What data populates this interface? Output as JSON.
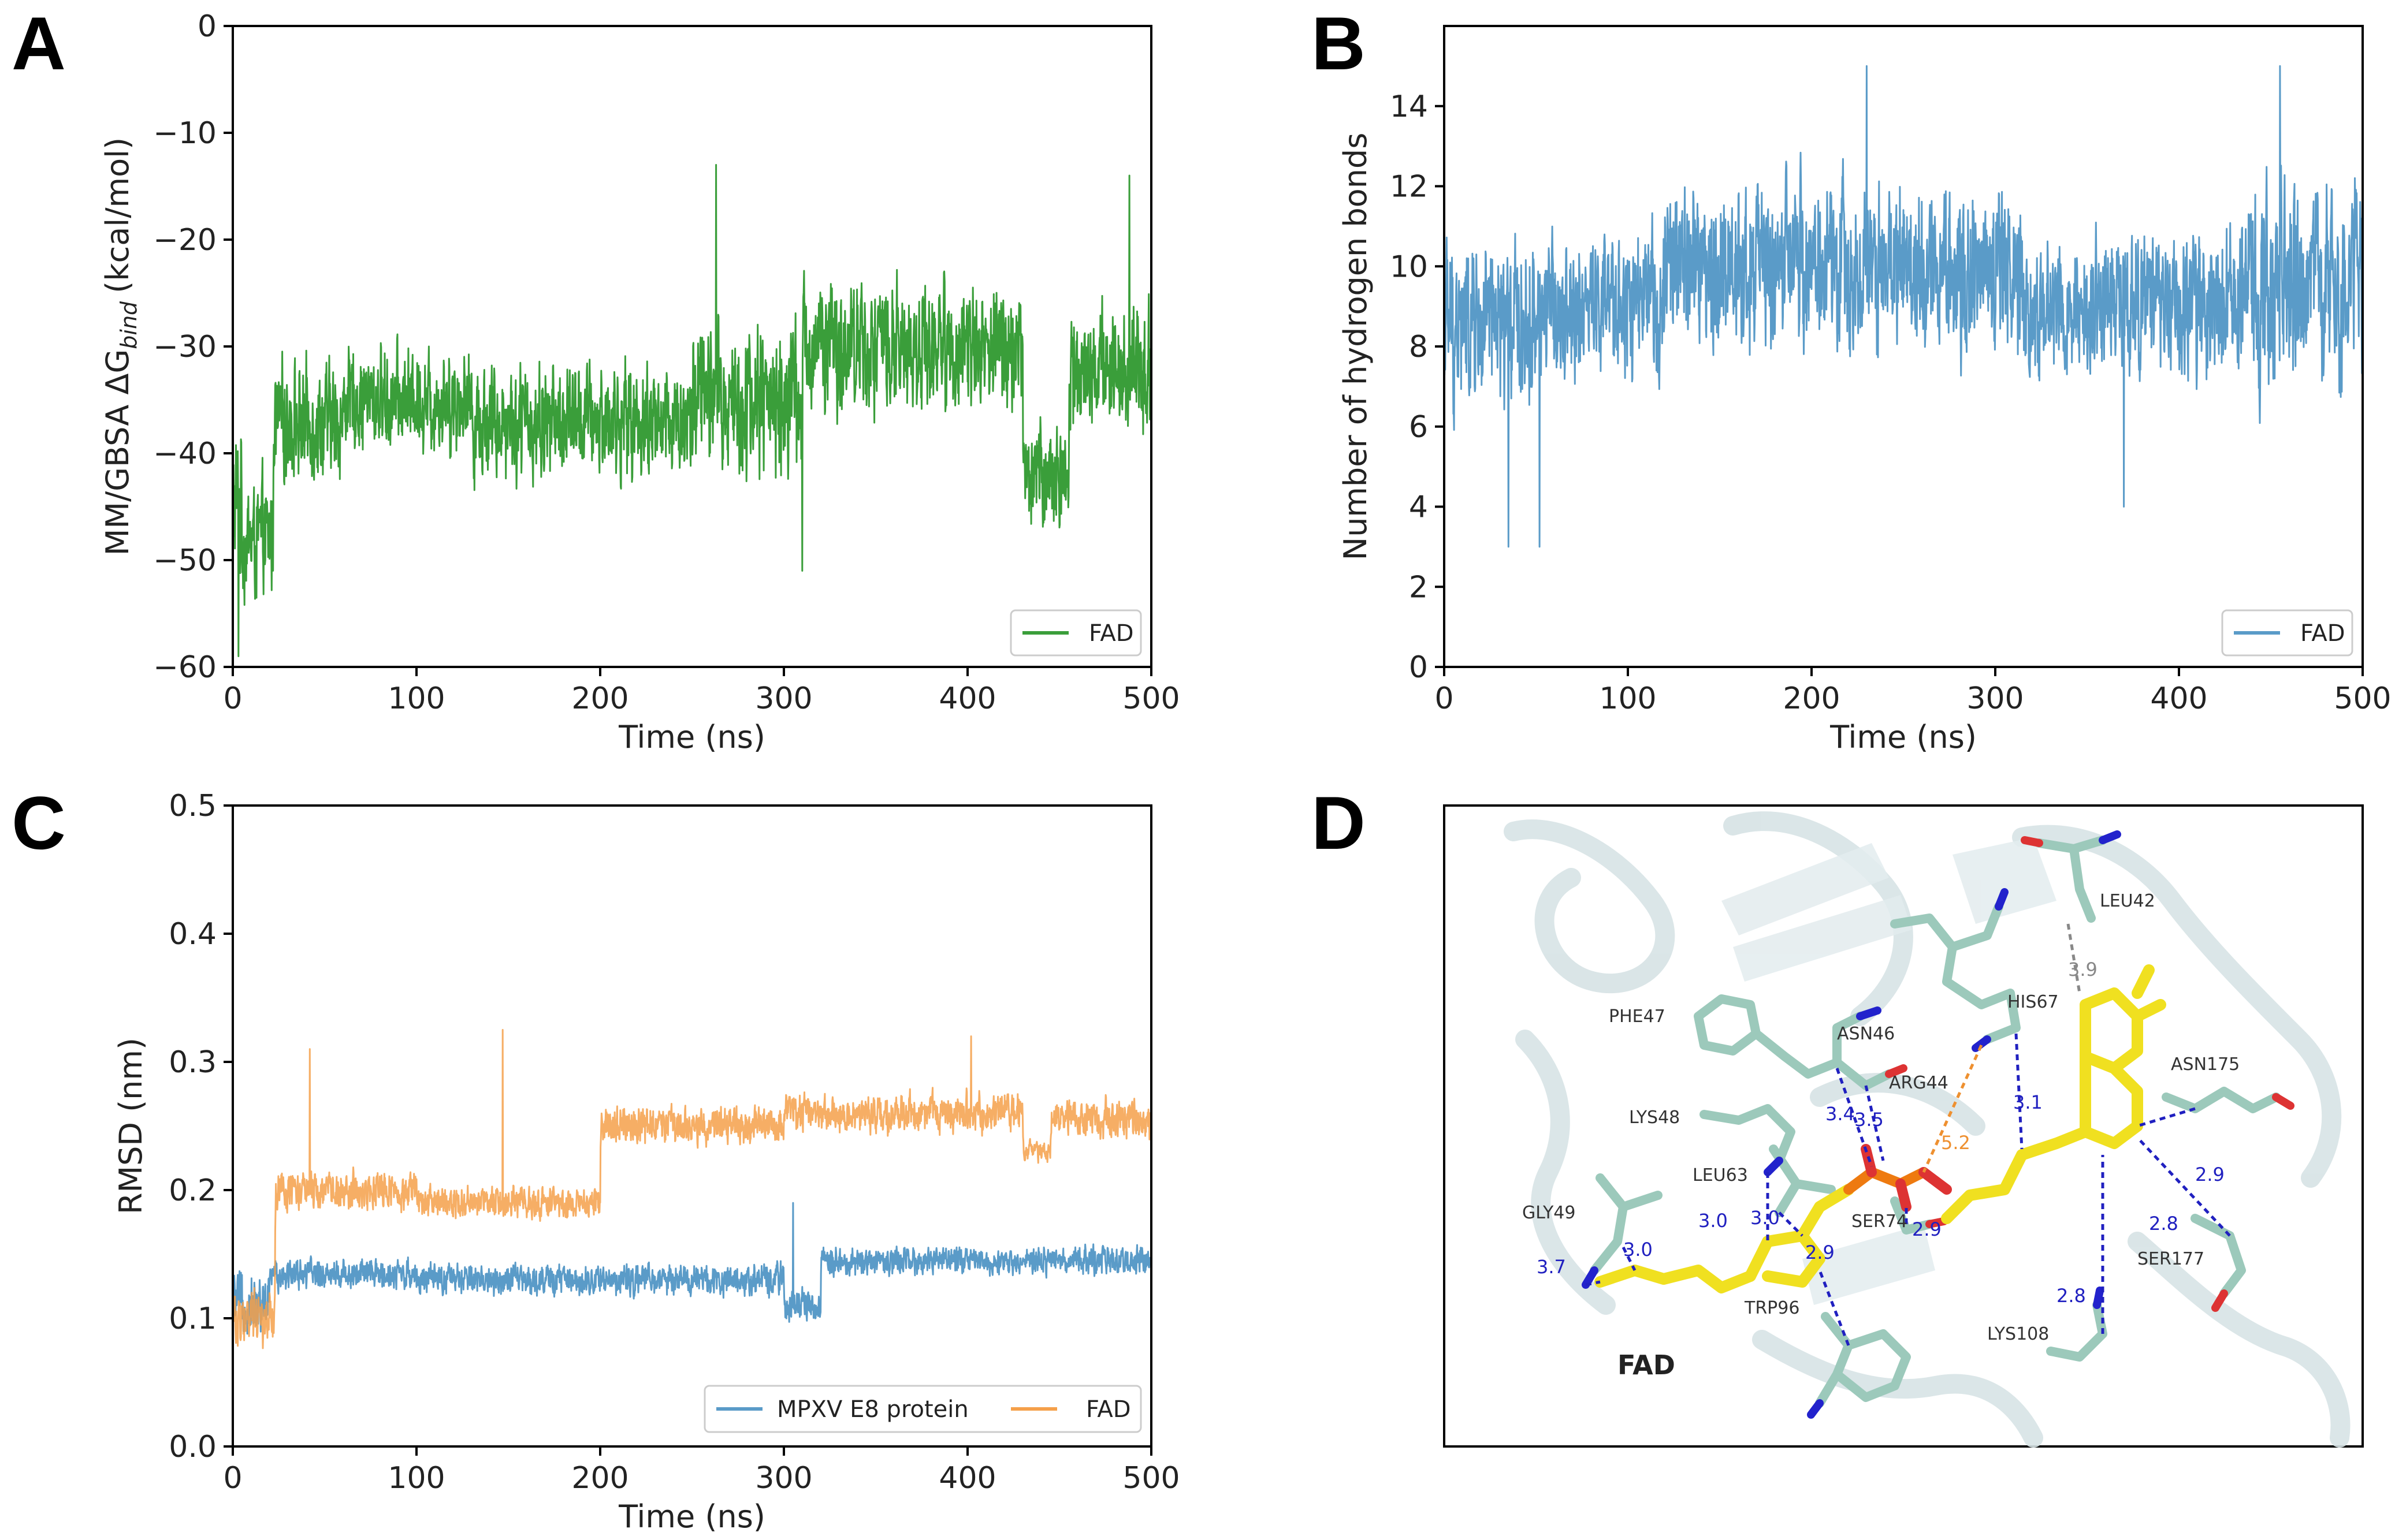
{
  "chart_data": [
    {
      "panel": "A",
      "type": "line",
      "xlabel": "Time (ns)",
      "ylabel_main": "MM/GBSA ΔG",
      "ylabel_sub": "bind",
      "ylabel_unit": "(kcal/mol)",
      "xlim": [
        0,
        500
      ],
      "ylim": [
        -60,
        0
      ],
      "xticks": [
        0,
        100,
        200,
        300,
        400,
        500
      ],
      "yticks": [
        0,
        -10,
        -20,
        -30,
        -40,
        -50,
        -60
      ],
      "xtick_labels": [
        "0",
        "100",
        "200",
        "300",
        "400",
        "500"
      ],
      "ytick_labels": [
        "0",
        "−10",
        "−20",
        "−30",
        "−40",
        "−50",
        "−60"
      ],
      "legend": "bottom-right",
      "series": [
        {
          "name": "FAD",
          "color": "#3a9e3a",
          "segments": [
            {
              "from": 0,
              "to": 5,
              "mean": -45,
              "amp": 12
            },
            {
              "from": 5,
              "to": 22,
              "mean": -48,
              "amp": 9
            },
            {
              "from": 22,
              "to": 60,
              "mean": -37,
              "amp": 9
            },
            {
              "from": 60,
              "to": 130,
              "mean": -35,
              "amp": 8
            },
            {
              "from": 130,
              "to": 200,
              "mean": -37,
              "amp": 9
            },
            {
              "from": 200,
              "to": 250,
              "mean": -37,
              "amp": 9
            },
            {
              "from": 250,
              "to": 310,
              "mean": -35,
              "amp": 12
            },
            {
              "from": 310,
              "to": 430,
              "mean": -30,
              "amp": 10
            },
            {
              "from": 430,
              "to": 455,
              "mean": -42,
              "amp": 8
            },
            {
              "from": 455,
              "to": 500,
              "mean": -32,
              "amp": 10
            }
          ],
          "spikes": [
            {
              "x": 263,
              "y": -13
            },
            {
              "x": 488,
              "y": -14
            },
            {
              "x": 310,
              "y": -51
            },
            {
              "x": 3,
              "y": -59
            }
          ]
        }
      ]
    },
    {
      "panel": "B",
      "type": "line",
      "xlabel": "Time (ns)",
      "ylabel": "Number of hydrogen bonds",
      "xlim": [
        0,
        500
      ],
      "ylim": [
        0,
        16
      ],
      "xticks": [
        0,
        100,
        200,
        300,
        400,
        500
      ],
      "yticks": [
        0,
        2,
        4,
        6,
        8,
        10,
        12,
        14
      ],
      "xtick_labels": [
        "0",
        "100",
        "200",
        "300",
        "400",
        "500"
      ],
      "ytick_labels": [
        "0",
        "2",
        "4",
        "6",
        "8",
        "10",
        "12",
        "14"
      ],
      "legend": "bottom-right",
      "series": [
        {
          "name": "FAD",
          "color": "#5a9bc8",
          "segments": [
            {
              "from": 0,
              "to": 50,
              "mean": 8.5,
              "amp": 3.5
            },
            {
              "from": 50,
              "to": 120,
              "mean": 9,
              "amp": 3
            },
            {
              "from": 120,
              "to": 315,
              "mean": 10,
              "amp": 3.5
            },
            {
              "from": 315,
              "to": 430,
              "mean": 9,
              "amp": 3
            },
            {
              "from": 430,
              "to": 500,
              "mean": 9.5,
              "amp": 4
            }
          ],
          "spikes": [
            {
              "x": 35,
              "y": 3
            },
            {
              "x": 52,
              "y": 3
            },
            {
              "x": 370,
              "y": 4
            },
            {
              "x": 455,
              "y": 15
            },
            {
              "x": 230,
              "y": 15
            }
          ]
        }
      ]
    },
    {
      "panel": "C",
      "type": "line",
      "xlabel": "Time (ns)",
      "ylabel": "RMSD (nm)",
      "xlim": [
        0,
        500
      ],
      "ylim": [
        0,
        0.5
      ],
      "xticks": [
        0,
        100,
        200,
        300,
        400,
        500
      ],
      "yticks": [
        0.0,
        0.1,
        0.2,
        0.3,
        0.4,
        0.5
      ],
      "xtick_labels": [
        "0",
        "100",
        "200",
        "300",
        "400",
        "500"
      ],
      "ytick_labels": [
        "0.0",
        "0.1",
        "0.2",
        "0.3",
        "0.4",
        "0.5"
      ],
      "legend": "bottom-right",
      "series": [
        {
          "name": "MPXV E8 protein",
          "color": "#5a9bc8",
          "segments": [
            {
              "from": 0,
              "to": 20,
              "mean": 0.11,
              "amp": 0.04
            },
            {
              "from": 20,
              "to": 100,
              "mean": 0.135,
              "amp": 0.02
            },
            {
              "from": 100,
              "to": 300,
              "mean": 0.13,
              "amp": 0.02
            },
            {
              "from": 300,
              "to": 320,
              "mean": 0.11,
              "amp": 0.02
            },
            {
              "from": 320,
              "to": 500,
              "mean": 0.145,
              "amp": 0.018
            }
          ],
          "spikes": [
            {
              "x": 305,
              "y": 0.19
            }
          ]
        },
        {
          "name": "FAD",
          "color": "#f5a04a",
          "segments": [
            {
              "from": 0,
              "to": 23,
              "mean": 0.1,
              "amp": 0.035
            },
            {
              "from": 23,
              "to": 100,
              "mean": 0.2,
              "amp": 0.025
            },
            {
              "from": 100,
              "to": 200,
              "mean": 0.19,
              "amp": 0.02
            },
            {
              "from": 200,
              "to": 300,
              "mean": 0.25,
              "amp": 0.025
            },
            {
              "from": 300,
              "to": 430,
              "mean": 0.26,
              "amp": 0.025
            },
            {
              "from": 430,
              "to": 445,
              "mean": 0.23,
              "amp": 0.015
            },
            {
              "from": 445,
              "to": 500,
              "mean": 0.255,
              "amp": 0.025
            }
          ],
          "spikes": [
            {
              "x": 42,
              "y": 0.31
            },
            {
              "x": 147,
              "y": 0.325
            },
            {
              "x": 402,
              "y": 0.32
            }
          ]
        }
      ]
    }
  ],
  "structure_panel": {
    "panel": "D",
    "ligand_label": "FAD",
    "residues": [
      "LEU42",
      "PHE47",
      "ASN46",
      "HIS67",
      "ARG44",
      "ASN175",
      "LYS48",
      "LEU63",
      "GLY49",
      "SER74",
      "SER177",
      "TRP96",
      "LYS108"
    ],
    "distances": [
      "3.9",
      "3.4",
      "3.5",
      "5.2",
      "3.1",
      "2.9",
      "3.0",
      "3.0",
      "2.9",
      "2.9",
      "2.8",
      "3.7",
      "3.0",
      "2.8"
    ],
    "colors": {
      "ligand": "#f0e020",
      "residue": "#9cc9bb",
      "nitrogen": "#2222cc",
      "oxygen": "#dd3333",
      "phosphorus": "#ee7a10",
      "hbond": "#2020c0",
      "contact": "#888888",
      "salt": "#ee9030",
      "protein": "#d7e3e5"
    }
  }
}
